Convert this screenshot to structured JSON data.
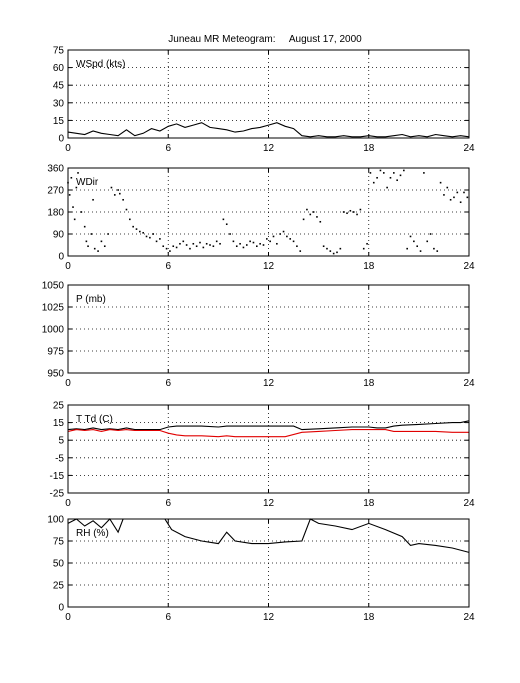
{
  "figure": {
    "title": "Juneau MR Meteogram:     August 17, 2000"
  },
  "chart_data": [
    {
      "type": "line",
      "id": "wspd",
      "label": "WSpd (kts)",
      "xlim": [
        0,
        24
      ],
      "ylim": [
        0,
        75
      ],
      "xticks": [
        0,
        6,
        12,
        18,
        24
      ],
      "yticks": [
        0,
        15,
        30,
        45,
        60,
        75
      ],
      "grid": true,
      "series": [
        {
          "color": "#000000",
          "x": [
            0,
            0.5,
            1,
            1.5,
            2,
            2.5,
            3,
            3.5,
            4,
            4.5,
            5,
            5.5,
            6,
            6.5,
            7,
            7.5,
            8,
            8.5,
            9,
            9.5,
            10,
            10.5,
            11,
            11.5,
            12,
            12.5,
            13,
            13.5,
            14,
            14.5,
            15,
            15.5,
            16,
            16.5,
            17,
            17.5,
            18,
            18.5,
            19,
            19.5,
            20,
            20.5,
            21,
            21.5,
            22,
            22.5,
            23,
            23.5,
            24
          ],
          "y": [
            5,
            4,
            3,
            6,
            4,
            3,
            2,
            7,
            2,
            4,
            8,
            6,
            10,
            12,
            9,
            11,
            13,
            9,
            8,
            7,
            5,
            6,
            8,
            9,
            11,
            13,
            10,
            8,
            2,
            1,
            2,
            1,
            1,
            2,
            1,
            1,
            2,
            1,
            1,
            2,
            3,
            1,
            2,
            1,
            3,
            2,
            1,
            2,
            1
          ]
        }
      ]
    },
    {
      "type": "scatter",
      "id": "wdir",
      "label": "WDir",
      "xlim": [
        0,
        24
      ],
      "ylim": [
        0,
        360
      ],
      "xticks": [
        0,
        6,
        12,
        18,
        24
      ],
      "yticks": [
        0,
        90,
        180,
        270,
        360
      ],
      "grid": true,
      "series": [
        {
          "color": "#000000",
          "x": [
            0,
            0.1,
            0.2,
            0.3,
            0.4,
            0.5,
            0.6,
            0.8,
            1,
            1.1,
            1.2,
            1.4,
            1.5,
            1.6,
            1.8,
            2,
            2.2,
            2.4,
            2.6,
            2.8,
            3,
            3.1,
            3.3,
            3.5,
            3.7,
            3.9,
            4.1,
            4.3,
            4.5,
            4.7,
            4.9,
            5.1,
            5.3,
            5.5,
            5.7,
            5.9,
            6.1,
            6.3,
            6.5,
            6.7,
            6.9,
            7.1,
            7.3,
            7.5,
            7.7,
            7.9,
            8.1,
            8.3,
            8.5,
            8.7,
            8.9,
            9.1,
            9.3,
            9.5,
            9.7,
            9.9,
            10.1,
            10.3,
            10.5,
            10.7,
            10.9,
            11.1,
            11.3,
            11.5,
            11.7,
            11.9,
            12.1,
            12.3,
            12.5,
            12.7,
            12.9,
            13.1,
            13.3,
            13.5,
            13.7,
            13.9,
            14.1,
            14.3,
            14.5,
            14.7,
            14.9,
            15.1,
            15.3,
            15.5,
            15.7,
            15.9,
            16.1,
            16.3,
            16.5,
            16.7,
            16.9,
            17.1,
            17.3,
            17.5,
            17.7,
            17.9,
            18.1,
            18.3,
            18.5,
            18.7,
            18.9,
            19.1,
            19.3,
            19.5,
            19.7,
            19.9,
            20.1,
            20.3,
            20.5,
            20.7,
            20.9,
            21.1,
            21.3,
            21.5,
            21.7,
            21.9,
            22.1,
            22.3,
            22.5,
            22.7,
            22.9,
            23.1,
            23.3,
            23.5,
            23.7,
            23.9
          ],
          "y": [
            300,
            250,
            320,
            200,
            150,
            280,
            340,
            180,
            120,
            60,
            40,
            90,
            230,
            30,
            20,
            60,
            40,
            90,
            280,
            250,
            270,
            255,
            230,
            190,
            150,
            120,
            110,
            100,
            95,
            80,
            75,
            90,
            60,
            70,
            40,
            30,
            20,
            40,
            35,
            50,
            60,
            45,
            30,
            50,
            40,
            55,
            35,
            50,
            45,
            40,
            60,
            50,
            150,
            130,
            90,
            60,
            40,
            50,
            35,
            45,
            60,
            55,
            40,
            50,
            45,
            70,
            60,
            80,
            50,
            90,
            100,
            80,
            70,
            60,
            40,
            20,
            150,
            190,
            170,
            180,
            160,
            140,
            40,
            30,
            20,
            10,
            15,
            30,
            180,
            175,
            185,
            180,
            170,
            190,
            30,
            50,
            340,
            300,
            320,
            350,
            340,
            280,
            320,
            340,
            310,
            330,
            350,
            30,
            80,
            60,
            40,
            20,
            340,
            60,
            90,
            30,
            20,
            300,
            250,
            280,
            230,
            240,
            260,
            220,
            260,
            240
          ]
        }
      ]
    },
    {
      "type": "line",
      "id": "pres",
      "label": "P (mb)",
      "xlim": [
        0,
        24
      ],
      "ylim": [
        950,
        1050
      ],
      "xticks": [
        0,
        6,
        12,
        18,
        24
      ],
      "yticks": [
        950,
        975,
        1000,
        1025,
        1050
      ],
      "grid": true,
      "series": []
    },
    {
      "type": "line",
      "id": "temp",
      "label": "T Td (C)",
      "xlim": [
        0,
        24
      ],
      "ylim": [
        -25,
        25
      ],
      "xticks": [
        0,
        6,
        12,
        18,
        24
      ],
      "yticks": [
        -25,
        -15,
        -5,
        5,
        15,
        25
      ],
      "grid": true,
      "series": [
        {
          "color": "#000000",
          "x": [
            0,
            0.5,
            1,
            1.5,
            2,
            2.5,
            3,
            3.5,
            4,
            5,
            5.5,
            6,
            6.5,
            7,
            8,
            9,
            9.5,
            10,
            11,
            12,
            13,
            13.5,
            14,
            15,
            16,
            17,
            18,
            18.5,
            19,
            19.5,
            20,
            21,
            22,
            23,
            23.5,
            24
          ],
          "y": [
            11,
            11.5,
            11,
            12,
            11,
            11.5,
            11,
            12,
            11,
            11,
            11,
            12.5,
            13,
            13,
            13,
            12.5,
            13,
            13,
            13,
            13,
            13,
            13,
            11,
            11.5,
            12,
            12.5,
            12.5,
            12,
            12,
            13,
            13.5,
            14,
            14.5,
            15,
            15,
            16
          ]
        },
        {
          "color": "#e00000",
          "x": [
            0,
            0.5,
            1,
            1.5,
            2,
            2.5,
            3,
            3.5,
            4,
            5,
            5.5,
            6,
            6.5,
            7,
            8,
            9,
            9.5,
            10,
            11,
            12,
            13,
            14,
            15,
            16,
            17,
            18,
            18.5,
            19,
            19.5,
            20,
            21,
            22,
            23,
            24
          ],
          "y": [
            10,
            11,
            10.5,
            11,
            10,
            11,
            10.5,
            11,
            10.5,
            10.5,
            10.5,
            9,
            8,
            7.5,
            7.5,
            7,
            7.5,
            7,
            7,
            7,
            7,
            9.5,
            10,
            10.5,
            11,
            11,
            11,
            11,
            10,
            10,
            10,
            10,
            9.5,
            9.5
          ]
        }
      ]
    },
    {
      "type": "line",
      "id": "rh",
      "label": "RH (%)",
      "xlim": [
        0,
        24
      ],
      "ylim": [
        0,
        100
      ],
      "xticks": [
        0,
        6,
        12,
        18,
        24
      ],
      "yticks": [
        0,
        25,
        50,
        75,
        100
      ],
      "grid": true,
      "series": [
        {
          "color": "#000000",
          "x": [
            0,
            0.5,
            1,
            1.5,
            2,
            2.5,
            3,
            3.3,
            5.8,
            6.2,
            7,
            8,
            9,
            9.5,
            10,
            11,
            12,
            13,
            14,
            14.5,
            15,
            16,
            17,
            18,
            19,
            20,
            20.5,
            21,
            22,
            23,
            24
          ],
          "y": [
            95,
            100,
            92,
            98,
            90,
            100,
            85,
            100,
            100,
            88,
            80,
            75,
            72,
            85,
            75,
            72,
            72,
            74,
            75,
            100,
            95,
            92,
            88,
            95,
            88,
            80,
            70,
            72,
            70,
            67,
            62
          ]
        }
      ]
    }
  ]
}
